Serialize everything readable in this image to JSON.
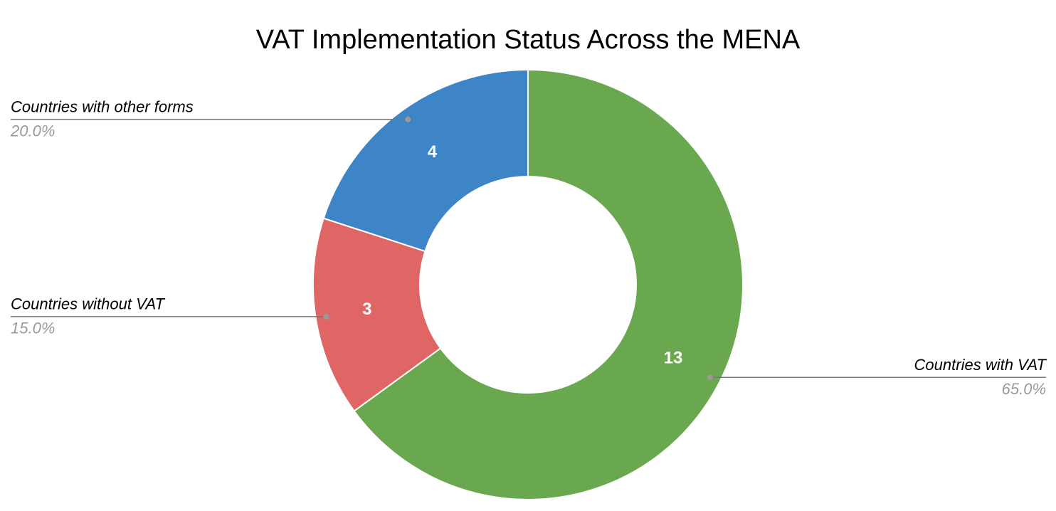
{
  "chart_data": {
    "type": "pie",
    "donut": true,
    "title": "VAT Implementation Status Across the MENA",
    "categories": [
      "Countries with VAT",
      "Countries without VAT",
      "Countries with other forms"
    ],
    "values": [
      13,
      3,
      4
    ],
    "percent_labels": [
      "65.0%",
      "15.0%",
      "20.0%"
    ],
    "colors": [
      "#6aa84f",
      "#e06666",
      "#3d85c6"
    ]
  }
}
